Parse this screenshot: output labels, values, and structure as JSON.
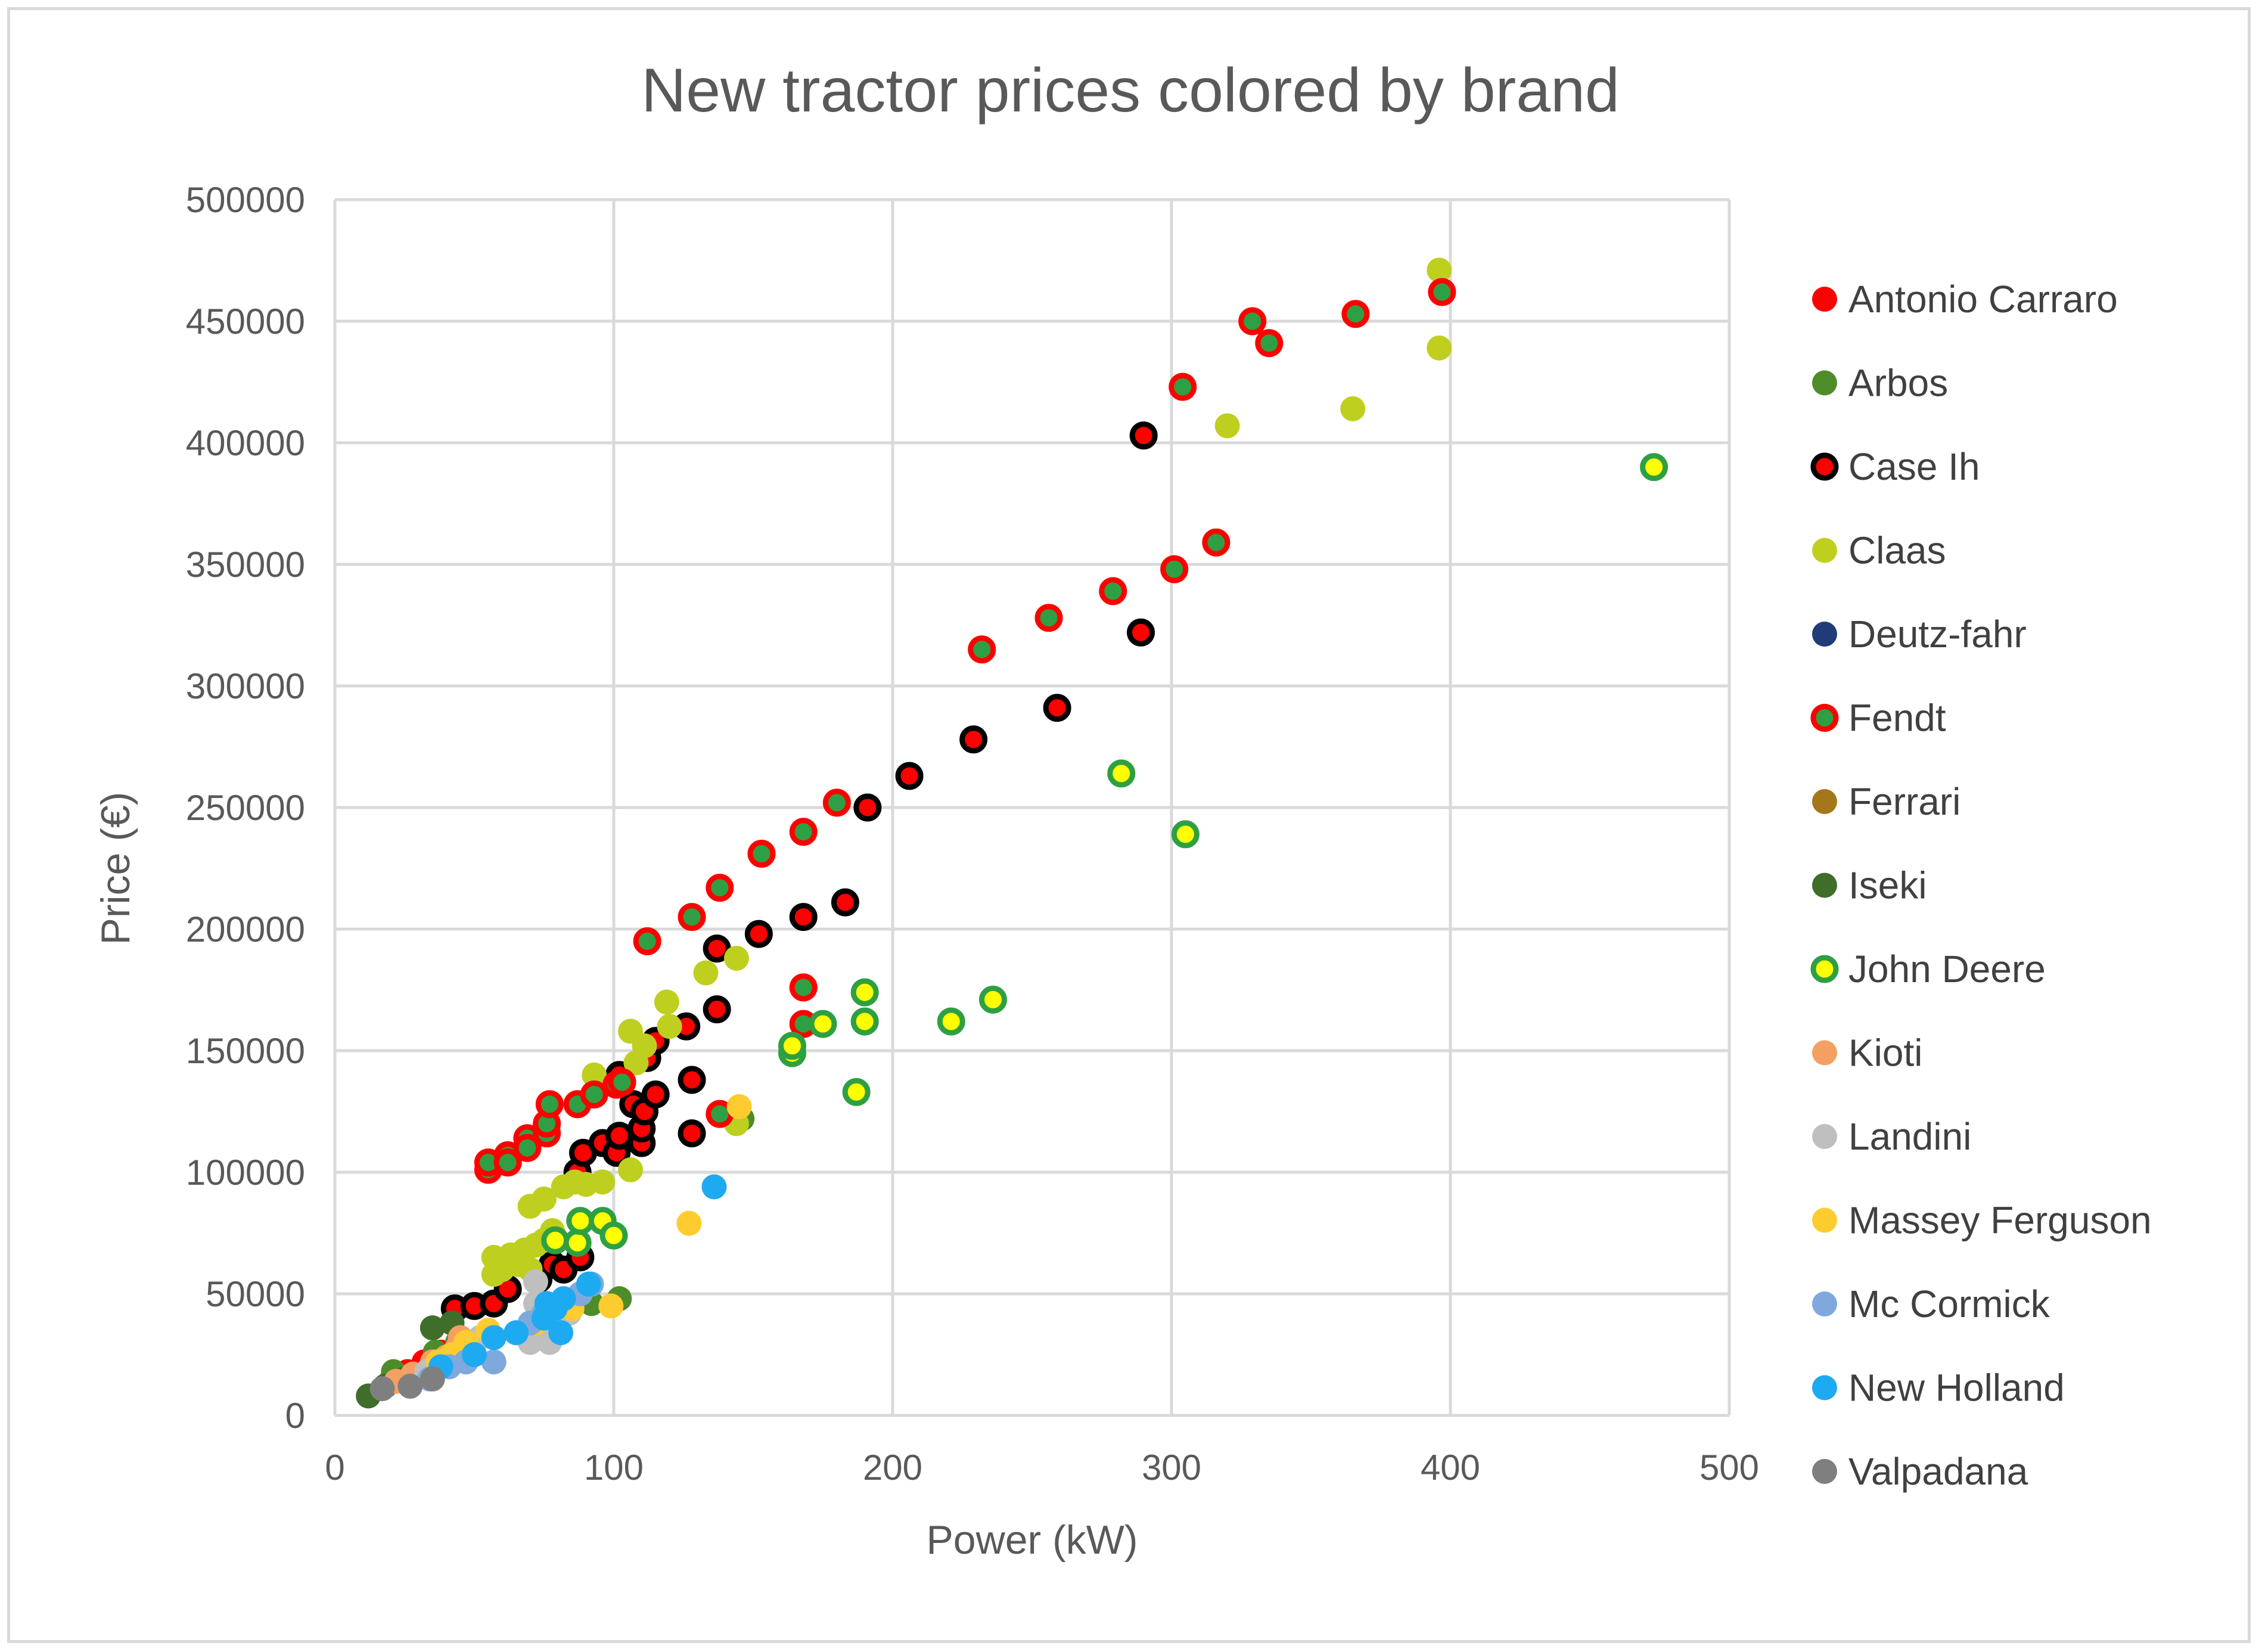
{
  "chart_data": {
    "type": "scatter",
    "title": "New tractor prices colored by brand",
    "xlabel": "Power (kW)",
    "ylabel": "Price (€)",
    "xlim": [
      0,
      500
    ],
    "ylim": [
      0,
      500000
    ],
    "x_ticks": [
      0,
      100,
      200,
      300,
      400,
      500
    ],
    "y_ticks": [
      0,
      50000,
      100000,
      150000,
      200000,
      250000,
      300000,
      350000,
      400000,
      450000,
      500000
    ],
    "grid": true,
    "legend_position": "right",
    "series": [
      {
        "name": "Antonio Carraro",
        "color": "#ff0000",
        "border": "none",
        "points": [
          [
            20,
            14000
          ],
          [
            26,
            18000
          ],
          [
            32,
            22000
          ],
          [
            38,
            26000
          ],
          [
            45,
            30000
          ]
        ]
      },
      {
        "name": "Arbos",
        "color": "#4e8c2a",
        "border": "none",
        "points": [
          [
            21,
            18000
          ],
          [
            36,
            26000
          ],
          [
            44,
            30000
          ],
          [
            92,
            46000
          ],
          [
            102,
            48000
          ],
          [
            146,
            122000
          ]
        ]
      },
      {
        "name": "Case Ih",
        "color": "#ff0000",
        "border": "#000000",
        "points": [
          [
            43,
            44000
          ],
          [
            50,
            45000
          ],
          [
            57,
            46000
          ],
          [
            62,
            52000
          ],
          [
            73,
            56000
          ],
          [
            78,
            62000
          ],
          [
            82,
            60000
          ],
          [
            88,
            65000
          ],
          [
            87,
            100000
          ],
          [
            89,
            108000
          ],
          [
            96,
            112000
          ],
          [
            101,
            108000
          ],
          [
            102,
            115000
          ],
          [
            102,
            140000
          ],
          [
            107,
            128000
          ],
          [
            110,
            112000
          ],
          [
            110,
            118000
          ],
          [
            111,
            125000
          ],
          [
            112,
            147000
          ],
          [
            115,
            132000
          ],
          [
            115,
            154000
          ],
          [
            126,
            160000
          ],
          [
            128,
            116000
          ],
          [
            128,
            138000
          ],
          [
            137,
            167000
          ],
          [
            137,
            192000
          ],
          [
            152,
            198000
          ],
          [
            168,
            205000
          ],
          [
            183,
            211000
          ],
          [
            191,
            250000
          ],
          [
            206,
            263000
          ],
          [
            229,
            278000
          ],
          [
            259,
            291000
          ],
          [
            289,
            322000
          ],
          [
            290,
            403000
          ]
        ]
      },
      {
        "name": "Claas",
        "color": "#bfcf1f",
        "border": "none",
        "points": [
          [
            57,
            58000
          ],
          [
            57,
            65000
          ],
          [
            60,
            60000
          ],
          [
            63,
            66000
          ],
          [
            66,
            62000
          ],
          [
            68,
            68000
          ],
          [
            70,
            60000
          ],
          [
            70,
            86000
          ],
          [
            72,
            70000
          ],
          [
            75,
            72000
          ],
          [
            75,
            89000
          ],
          [
            78,
            76000
          ],
          [
            82,
            94000
          ],
          [
            86,
            96000
          ],
          [
            90,
            95000
          ],
          [
            93,
            140000
          ],
          [
            96,
            96000
          ],
          [
            106,
            101000
          ],
          [
            106,
            158000
          ],
          [
            108,
            145000
          ],
          [
            111,
            152000
          ],
          [
            119,
            170000
          ],
          [
            120,
            160000
          ],
          [
            133,
            182000
          ],
          [
            144,
            188000
          ],
          [
            144,
            120000
          ],
          [
            320,
            407000
          ],
          [
            365,
            414000
          ],
          [
            396,
            439000
          ],
          [
            396,
            471000
          ]
        ]
      },
      {
        "name": "Deutz-fahr",
        "color": "#1f3c78",
        "border": "none",
        "points": []
      },
      {
        "name": "Fendt",
        "color": "#2ea043",
        "border": "#ff0000",
        "points": [
          [
            55,
            101000
          ],
          [
            55,
            104000
          ],
          [
            62,
            107000
          ],
          [
            62,
            104000
          ],
          [
            69,
            114000
          ],
          [
            69,
            110000
          ],
          [
            76,
            116000
          ],
          [
            76,
            120000
          ],
          [
            77,
            128000
          ],
          [
            87,
            128000
          ],
          [
            93,
            132000
          ],
          [
            101,
            136000
          ],
          [
            103,
            137000
          ],
          [
            112,
            195000
          ],
          [
            128,
            205000
          ],
          [
            138,
            124000
          ],
          [
            138,
            217000
          ],
          [
            153,
            231000
          ],
          [
            168,
            161000
          ],
          [
            168,
            176000
          ],
          [
            168,
            240000
          ],
          [
            180,
            252000
          ],
          [
            232,
            315000
          ],
          [
            256,
            328000
          ],
          [
            279,
            339000
          ],
          [
            301,
            348000
          ],
          [
            304,
            423000
          ],
          [
            316,
            359000
          ],
          [
            329,
            450000
          ],
          [
            335,
            441000
          ],
          [
            366,
            453000
          ],
          [
            397,
            462000
          ]
        ]
      },
      {
        "name": "Ferrari",
        "color": "#a6771a",
        "border": "none",
        "points": []
      },
      {
        "name": "Iseki",
        "color": "#3f6e2a",
        "border": "none",
        "points": [
          [
            12,
            8000
          ],
          [
            18,
            12000
          ],
          [
            25,
            15000
          ],
          [
            35,
            36000
          ],
          [
            42,
            38000
          ]
        ]
      },
      {
        "name": "John Deere",
        "color": "#ffff00",
        "border": "#2ea043",
        "points": [
          [
            79,
            72000
          ],
          [
            87,
            71000
          ],
          [
            88,
            80000
          ],
          [
            96,
            80000
          ],
          [
            100,
            74000
          ],
          [
            164,
            149000
          ],
          [
            164,
            152000
          ],
          [
            175,
            161000
          ],
          [
            187,
            133000
          ],
          [
            190,
            162000
          ],
          [
            190,
            174000
          ],
          [
            221,
            162000
          ],
          [
            236,
            171000
          ],
          [
            282,
            264000
          ],
          [
            305,
            239000
          ],
          [
            473,
            390000
          ]
        ]
      },
      {
        "name": "Kioti",
        "color": "#f4a063",
        "border": "none",
        "points": [
          [
            22,
            14000
          ],
          [
            28,
            17000
          ],
          [
            35,
            22000
          ],
          [
            40,
            24000
          ],
          [
            44,
            28000
          ],
          [
            45,
            32000
          ]
        ]
      },
      {
        "name": "Landini",
        "color": "#bfbfbf",
        "border": "none",
        "points": [
          [
            33,
            18000
          ],
          [
            45,
            26000
          ],
          [
            52,
            32000
          ],
          [
            70,
            30000
          ],
          [
            72,
            46000
          ],
          [
            72,
            55000
          ],
          [
            77,
            30000
          ],
          [
            84,
            42000
          ]
        ]
      },
      {
        "name": "Massey Ferguson",
        "color": "#ffcc2f",
        "border": "none",
        "points": [
          [
            37,
            22000
          ],
          [
            42,
            25000
          ],
          [
            47,
            30000
          ],
          [
            55,
            35000
          ],
          [
            72,
            38000
          ],
          [
            85,
            44000
          ],
          [
            99,
            45000
          ],
          [
            127,
            79000
          ],
          [
            145,
            127000
          ]
        ]
      },
      {
        "name": "Mc Cormick",
        "color": "#7fa9dc",
        "border": "none",
        "points": [
          [
            34,
            15000
          ],
          [
            41,
            20000
          ],
          [
            47,
            22000
          ],
          [
            57,
            22000
          ],
          [
            70,
            38000
          ],
          [
            75,
            42000
          ],
          [
            92,
            54000
          ],
          [
            88,
            50000
          ]
        ]
      },
      {
        "name": "New Holland",
        "color": "#1eaaf1",
        "border": "none",
        "points": [
          [
            38,
            20000
          ],
          [
            50,
            25000
          ],
          [
            57,
            32000
          ],
          [
            65,
            34000
          ],
          [
            75,
            40000
          ],
          [
            76,
            46000
          ],
          [
            79,
            44000
          ],
          [
            81,
            34000
          ],
          [
            82,
            48000
          ],
          [
            91,
            54000
          ],
          [
            136,
            94000
          ]
        ]
      },
      {
        "name": "Valpadana",
        "color": "#7f7f7f",
        "border": "none",
        "points": [
          [
            17,
            11000
          ],
          [
            27,
            12000
          ],
          [
            35,
            15000
          ]
        ]
      }
    ]
  }
}
